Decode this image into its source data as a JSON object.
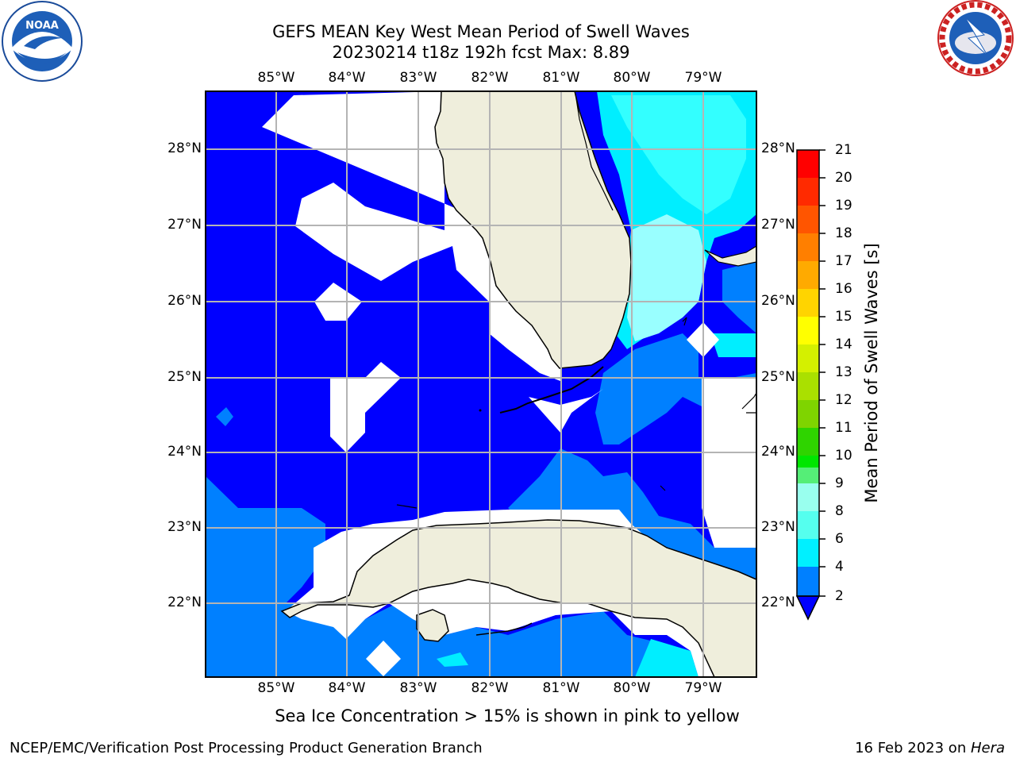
{
  "title_line1": "GEFS MEAN Key West Mean Period of Swell Waves",
  "title_line2": "20230214 t18z 192h fcst   Max: 8.89",
  "lon_labels": [
    "85°W",
    "84°W",
    "83°W",
    "82°W",
    "81°W",
    "80°W",
    "79°W"
  ],
  "lat_labels": [
    "28°N",
    "27°N",
    "26°N",
    "25°N",
    "24°N",
    "23°N",
    "22°N"
  ],
  "colorbar": {
    "title": "Mean Period of Swell Waves [s]",
    "ticks": [
      "21",
      "20",
      "19",
      "18",
      "17",
      "16",
      "15",
      "14",
      "13",
      "12",
      "11",
      "10",
      "9",
      "8",
      "6",
      "4",
      "2"
    ],
    "colors": [
      "#ff0000",
      "#ff2a00",
      "#ff5500",
      "#ff7f00",
      "#ffaa00",
      "#ffd400",
      "#ffff00",
      "#d4f000",
      "#aae000",
      "#7fd400",
      "#2fd400",
      "#00e600",
      "#55ee77",
      "#99ffee",
      "#55ffee",
      "#00f0ff",
      "#0080ff",
      "#0000ff"
    ]
  },
  "map_colors": {
    "deep_blue": "#0000ff",
    "azure": "#0080ff",
    "light_cyan": "#99ffff",
    "cyan": "#33ffff",
    "bright_cyan": "#00eeff",
    "land": "#efeedc",
    "grid": "#b4b4b4"
  },
  "logos": {
    "left": "NOAA",
    "right": "NATIONAL WEATHER SERVICE"
  },
  "note": "Sea Ice Concentration > 15% is shown in pink to yellow",
  "footer_left": "NCEP/EMC/Verification Post Processing Product Generation Branch",
  "footer_right_date": "16 Feb 2023 on ",
  "footer_right_host": "Hera"
}
